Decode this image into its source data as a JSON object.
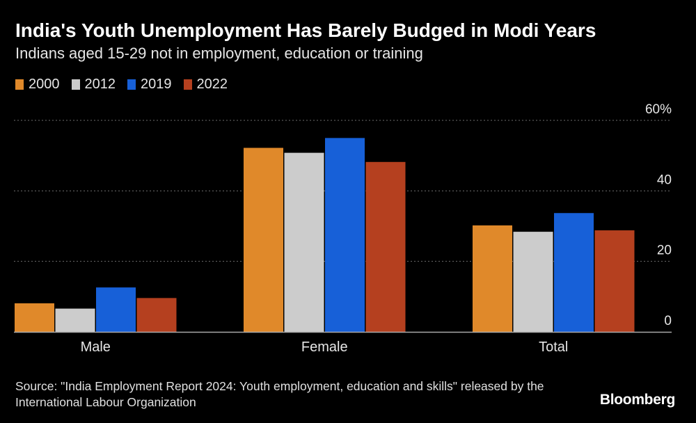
{
  "title": "India's Youth Unemployment Has Barely Budged in Modi Years",
  "subtitle": "Indians aged 15-29 not in employment, education or training",
  "source": "Source: \"India Employment Report 2024: Youth employment, education and skills\" released by the International Labour Organization",
  "brand": "Bloomberg",
  "colors": {
    "background": "#000000",
    "grid": "#6e6e6e",
    "axis": "#aaaaaa",
    "text": "#e6e6e6"
  },
  "chart_data": {
    "type": "bar",
    "title": "India's Youth Unemployment Has Barely Budged in Modi Years",
    "subtitle": "Indians aged 15-29 not in employment, education or training",
    "categories": [
      "Male",
      "Female",
      "Total"
    ],
    "series": [
      {
        "name": "2000",
        "color": "#e0892a",
        "values": [
          8.1,
          52.2,
          30.2
        ]
      },
      {
        "name": "2012",
        "color": "#cccccc",
        "values": [
          6.6,
          50.8,
          28.4
        ]
      },
      {
        "name": "2019",
        "color": "#1760d8",
        "values": [
          12.6,
          55.0,
          33.7
        ]
      },
      {
        "name": "2022",
        "color": "#b5401f",
        "values": [
          9.6,
          48.2,
          28.8
        ]
      }
    ],
    "ylim": [
      0,
      60
    ],
    "yticks": [
      0,
      20,
      40,
      60
    ],
    "ytick_labels": [
      "0",
      "20",
      "40",
      "60%"
    ],
    "y_axis_position": "right",
    "grid": true,
    "legend_position": "top-left"
  }
}
